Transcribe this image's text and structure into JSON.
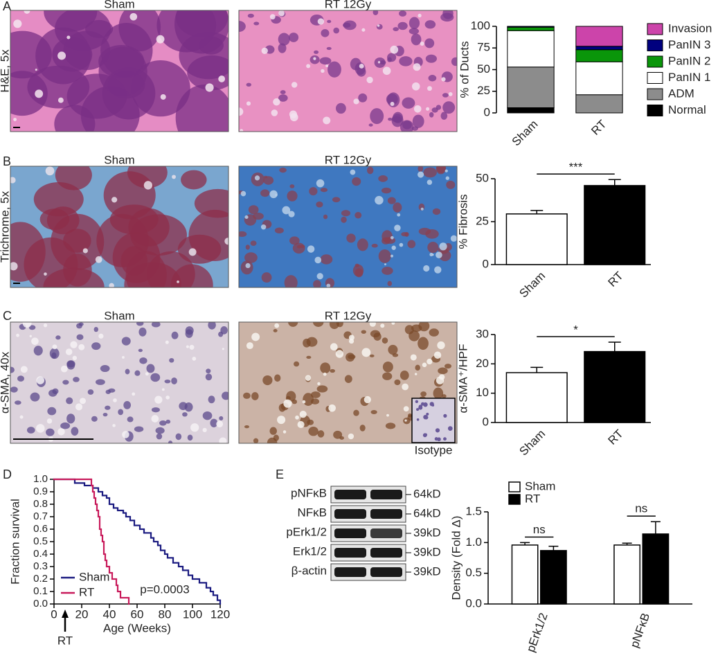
{
  "panel_labels": [
    "A",
    "B",
    "C",
    "D",
    "E"
  ],
  "image_rows": [
    {
      "label": "H&E, 5x",
      "titles": [
        "Sham",
        "RT 12Gy"
      ]
    },
    {
      "label": "Trichrome, 5x",
      "titles": [
        "Sham",
        "RT 12Gy"
      ]
    },
    {
      "label": "α-SMA, 40x",
      "titles": [
        "Sham",
        "RT 12Gy"
      ],
      "inset": "Isotype"
    }
  ],
  "blot": {
    "bands": [
      {
        "name": "pNFκB",
        "size": "64kD"
      },
      {
        "name": "NFκB",
        "size": "64kD"
      },
      {
        "name": "pErk1/2",
        "size": "39kD"
      },
      {
        "name": "Erk1/2",
        "size": "39kD"
      },
      {
        "name": "β-actin",
        "size": "39kD"
      }
    ]
  },
  "chart_data": [
    {
      "type": "stacked_bar",
      "ylabel": "% of Ducts",
      "categories": [
        "Sham",
        "RT"
      ],
      "ylim": [
        0,
        100
      ],
      "yticks": [
        0,
        25,
        50,
        75,
        100
      ],
      "series": [
        {
          "name": "Normal",
          "color": "#000000",
          "values": [
            6,
            0
          ]
        },
        {
          "name": "ADM",
          "color": "#8c8c8c",
          "values": [
            47,
            21
          ]
        },
        {
          "name": "PanIN 1",
          "color": "#ffffff",
          "values": [
            42,
            38
          ]
        },
        {
          "name": "PanIN 2",
          "color": "#0a960a",
          "values": [
            4,
            14
          ]
        },
        {
          "name": "PanIN 3",
          "color": "#00007f",
          "values": [
            1,
            4
          ]
        },
        {
          "name": "Invasion",
          "color": "#cc44aa",
          "values": [
            0,
            23
          ]
        }
      ]
    },
    {
      "type": "bar",
      "ylabel": "% Fibrosis",
      "categories": [
        "Sham",
        "RT"
      ],
      "values": [
        29.5,
        46
      ],
      "errors": [
        2,
        3.5
      ],
      "colors": [
        "#ffffff",
        "#000000"
      ],
      "ylim": [
        0,
        50
      ],
      "yticks": [
        0,
        25,
        50
      ],
      "significance": "***"
    },
    {
      "type": "bar",
      "ylabel": "α-SMA⁺/HPF",
      "categories": [
        "Sham",
        "RT"
      ],
      "values": [
        17,
        24.2
      ],
      "errors": [
        1.8,
        3.2
      ],
      "colors": [
        "#ffffff",
        "#000000"
      ],
      "ylim": [
        0,
        30
      ],
      "yticks": [
        0,
        10,
        20,
        30
      ],
      "significance": "*"
    },
    {
      "type": "line",
      "ylabel": "Fraction survival",
      "xlabel": "Age (Weeks)",
      "xlim": [
        0,
        120
      ],
      "xticks": [
        0,
        20,
        40,
        60,
        80,
        100,
        120
      ],
      "ylim": [
        0,
        1
      ],
      "yticks": [
        {
          "value": 0,
          "label": "0.0"
        },
        {
          "value": 0.1,
          "label": "0.1"
        },
        {
          "value": 0.2,
          "label": "0.2"
        },
        {
          "value": 0.3,
          "label": "0.3"
        },
        {
          "value": 0.4,
          "label": "0.4"
        },
        {
          "value": 0.5,
          "label": "0.5"
        },
        {
          "value": 0.6,
          "label": "0.6"
        },
        {
          "value": 0.7,
          "label": "0.7"
        },
        {
          "value": 0.8,
          "label": "0.8"
        },
        {
          "value": 0.9,
          "label": "0.9"
        },
        {
          "value": 1,
          "label": "1.0"
        }
      ],
      "annotations": [
        {
          "text": "RT",
          "x": 8
        },
        {
          "text": "p=0.0003"
        }
      ],
      "series": [
        {
          "name": "Sham",
          "color": "#1a1a80",
          "x": [
            0,
            15,
            22,
            28,
            32,
            35,
            38,
            40,
            43,
            46,
            50,
            52,
            55,
            58,
            62,
            65,
            70,
            72,
            75,
            77,
            80,
            82,
            86,
            90,
            93,
            97,
            100,
            105,
            110,
            113,
            115,
            118,
            120
          ],
          "values": [
            1.0,
            0.97,
            0.95,
            0.93,
            0.9,
            0.87,
            0.85,
            0.8,
            0.77,
            0.75,
            0.73,
            0.7,
            0.67,
            0.63,
            0.6,
            0.57,
            0.53,
            0.5,
            0.47,
            0.43,
            0.4,
            0.37,
            0.33,
            0.3,
            0.27,
            0.23,
            0.2,
            0.17,
            0.13,
            0.1,
            0.07,
            0.03,
            0.0
          ]
        },
        {
          "name": "RT",
          "color": "#c8195a",
          "x": [
            0,
            27,
            28,
            29,
            30,
            31,
            32,
            33,
            34,
            35,
            36,
            37,
            38,
            40,
            42,
            45,
            46,
            48,
            54
          ],
          "values": [
            1.0,
            0.95,
            0.9,
            0.85,
            0.8,
            0.75,
            0.7,
            0.6,
            0.55,
            0.5,
            0.4,
            0.35,
            0.3,
            0.25,
            0.2,
            0.15,
            0.1,
            0.05,
            0.0
          ]
        }
      ]
    },
    {
      "type": "grouped_bar",
      "ylabel": "Density (Fold Δ)",
      "categories": [
        "pErk1/2",
        "pNFκB"
      ],
      "ylim": [
        0,
        1.5
      ],
      "yticks": [
        {
          "value": 0,
          "label": "0.0"
        },
        {
          "value": 0.5,
          "label": "0.5"
        },
        {
          "value": 1,
          "label": "1.0"
        },
        {
          "value": 1.5,
          "label": "1.5"
        }
      ],
      "significance": [
        "ns",
        "ns"
      ],
      "series": [
        {
          "name": "Sham",
          "color": "#ffffff",
          "values": [
            0.96,
            0.96
          ],
          "errors": [
            0.04,
            0.03
          ]
        },
        {
          "name": "RT",
          "color": "#000000",
          "values": [
            0.87,
            1.14
          ],
          "errors": [
            0.07,
            0.2
          ]
        }
      ]
    }
  ]
}
